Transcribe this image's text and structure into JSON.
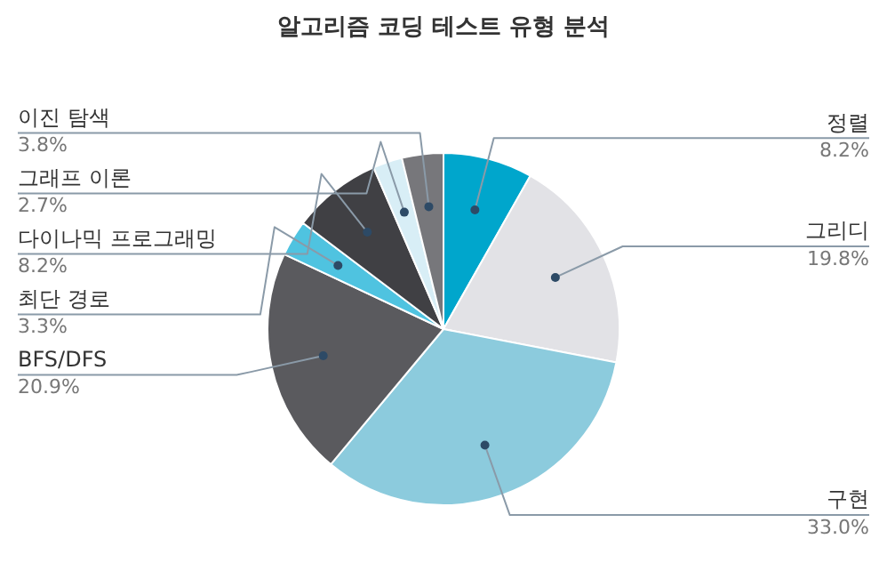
{
  "chart_data": {
    "type": "pie",
    "title": "알고리즘 코딩 테스트 유형 분석",
    "categories": [
      "정렬",
      "그리디",
      "구현",
      "BFS/DFS",
      "최단 경로",
      "다이나믹 프로그래밍",
      "그래프 이론",
      "이진 탐색"
    ],
    "values": [
      8.2,
      19.8,
      33.0,
      20.9,
      3.3,
      8.2,
      2.7,
      3.8
    ],
    "value_labels": [
      "8.2%",
      "19.8%",
      "33.0%",
      "20.9%",
      "3.3%",
      "8.2%",
      "2.7%",
      "3.8%"
    ],
    "colors": [
      "#00a6cc",
      "#e2e2e6",
      "#8ccbdd",
      "#5a5a5e",
      "#4fc3e0",
      "#404044",
      "#d8eef6",
      "#77777b"
    ],
    "legend": false
  }
}
